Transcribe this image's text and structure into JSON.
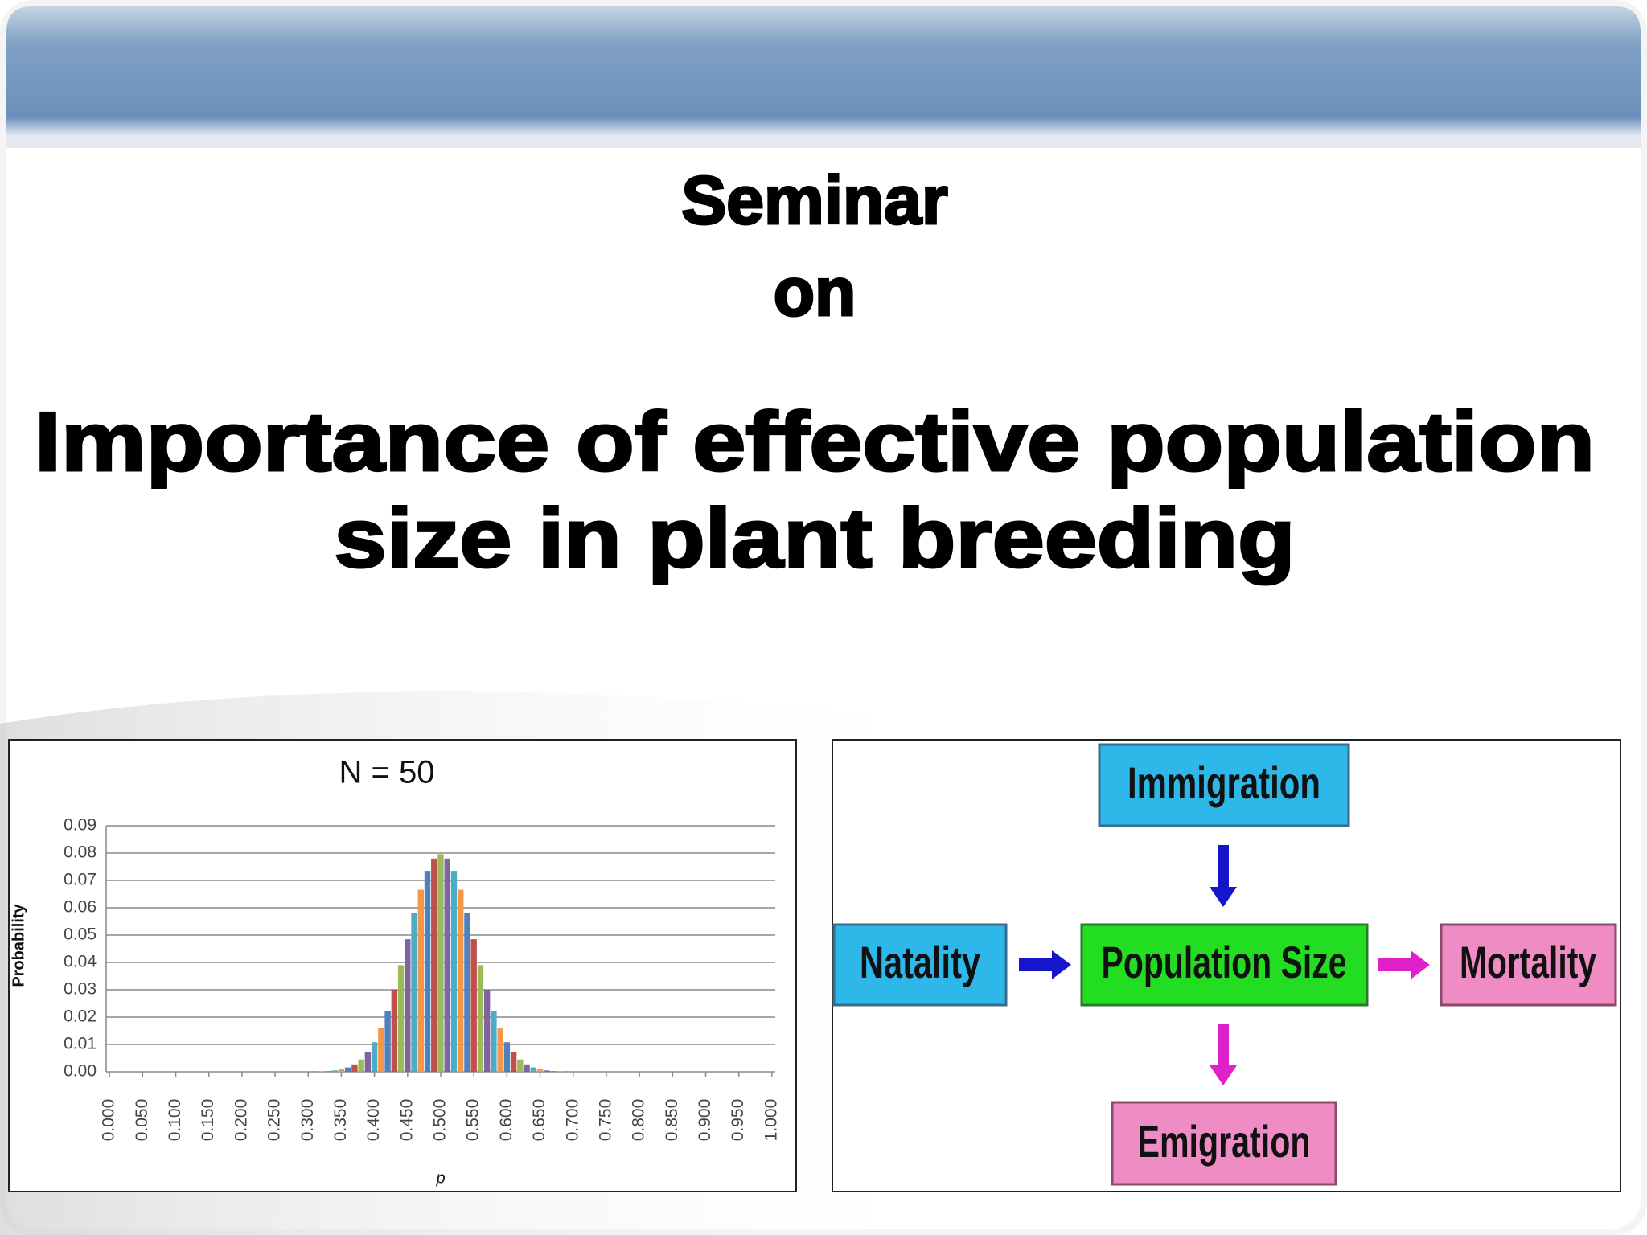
{
  "slide": {
    "heading": "Seminar",
    "subheading": "on",
    "title_lines": [
      "Importance of effective population",
      "size in plant breeding"
    ]
  },
  "chart_data": {
    "type": "bar",
    "title": "N = 50",
    "x_label": "p",
    "y_label": "Probability",
    "x": [
      0,
      0.01,
      0.02,
      0.03,
      0.04,
      0.05,
      0.06,
      0.07,
      0.08,
      0.09,
      0.1,
      0.11,
      0.12,
      0.13,
      0.14,
      0.15,
      0.16,
      0.17,
      0.18,
      0.19,
      0.2,
      0.21,
      0.22,
      0.23,
      0.24,
      0.25,
      0.26,
      0.27,
      0.28,
      0.29,
      0.3,
      0.31,
      0.32,
      0.33,
      0.34,
      0.35,
      0.36,
      0.37,
      0.38,
      0.39,
      0.4,
      0.41,
      0.42,
      0.43,
      0.44,
      0.45,
      0.46,
      0.47,
      0.48,
      0.49,
      0.5,
      0.51,
      0.52,
      0.53,
      0.54,
      0.55,
      0.56,
      0.57,
      0.58,
      0.59,
      0.6,
      0.61,
      0.62,
      0.63,
      0.64,
      0.65,
      0.66,
      0.67,
      0.68,
      0.69,
      0.7,
      0.71,
      0.72,
      0.73,
      0.74,
      0.75,
      0.76,
      0.77,
      0.78,
      0.79,
      0.8,
      0.81,
      0.82,
      0.83,
      0.84,
      0.85,
      0.86,
      0.87,
      0.88,
      0.89,
      0.9,
      0.91,
      0.92,
      0.93,
      0.94,
      0.95,
      0.96,
      0.97,
      0.98,
      0.99,
      1
    ],
    "values": [
      0,
      0,
      0,
      0,
      0,
      0,
      0,
      0,
      0,
      0,
      0,
      0,
      0,
      0,
      0,
      0,
      0,
      0,
      0,
      0,
      0,
      0,
      0,
      0,
      0,
      0,
      0,
      0,
      0,
      0,
      0,
      0.0001,
      0.0001,
      0.0002,
      0.0005,
      0.0009,
      0.0016,
      0.0027,
      0.0045,
      0.0071,
      0.0108,
      0.0159,
      0.0223,
      0.0301,
      0.039,
      0.0485,
      0.058,
      0.0666,
      0.0735,
      0.078,
      0.0796,
      0.078,
      0.0735,
      0.0666,
      0.058,
      0.0485,
      0.039,
      0.0301,
      0.0223,
      0.0159,
      0.0108,
      0.0071,
      0.0045,
      0.0027,
      0.0016,
      0.0009,
      0.0005,
      0.0002,
      0.0001,
      0.0001,
      0,
      0,
      0,
      0,
      0,
      0,
      0,
      0,
      0,
      0,
      0,
      0,
      0,
      0,
      0,
      0,
      0,
      0,
      0,
      0,
      0,
      0,
      0,
      0,
      0,
      0,
      0,
      0,
      0,
      0,
      0
    ],
    "colors": [
      "#4f81bd",
      "#c0504d",
      "#9bbb59",
      "#8064a2",
      "#4bacc6",
      "#f79646"
    ],
    "xlim": [
      -0.005,
      1.005
    ],
    "xticks": [
      {
        "value": 0,
        "label": "0.000"
      },
      {
        "value": 0.05,
        "label": "0.050"
      },
      {
        "value": 0.1,
        "label": "0.100"
      },
      {
        "value": 0.15,
        "label": "0.150"
      },
      {
        "value": 0.2,
        "label": "0.200"
      },
      {
        "value": 0.25,
        "label": "0.250"
      },
      {
        "value": 0.3,
        "label": "0.300"
      },
      {
        "value": 0.35,
        "label": "0.350"
      },
      {
        "value": 0.4,
        "label": "0.400"
      },
      {
        "value": 0.45,
        "label": "0.450"
      },
      {
        "value": 0.5,
        "label": "0.500"
      },
      {
        "value": 0.55,
        "label": "0.550"
      },
      {
        "value": 0.6,
        "label": "0.600"
      },
      {
        "value": 0.65,
        "label": "0.650"
      },
      {
        "value": 0.7,
        "label": "0.700"
      },
      {
        "value": 0.75,
        "label": "0.750"
      },
      {
        "value": 0.8,
        "label": "0.800"
      },
      {
        "value": 0.85,
        "label": "0.850"
      },
      {
        "value": 0.9,
        "label": "0.900"
      },
      {
        "value": 0.95,
        "label": "0.950"
      },
      {
        "value": 1,
        "label": "1.000"
      }
    ],
    "ylim": [
      0,
      0.09
    ],
    "yticks": [
      {
        "value": 0,
        "label": "0.00"
      },
      0.01,
      0.02,
      0.03,
      0.04,
      0.05,
      0.06,
      0.07,
      0.08,
      0.09
    ],
    "grid": true
  },
  "diagram": {
    "nodes": [
      {
        "label": "Immigration"
      },
      {
        "label": "Natality"
      },
      {
        "label": "Population Size"
      },
      {
        "label": "Mortality"
      },
      {
        "label": "Emigration"
      }
    ]
  }
}
